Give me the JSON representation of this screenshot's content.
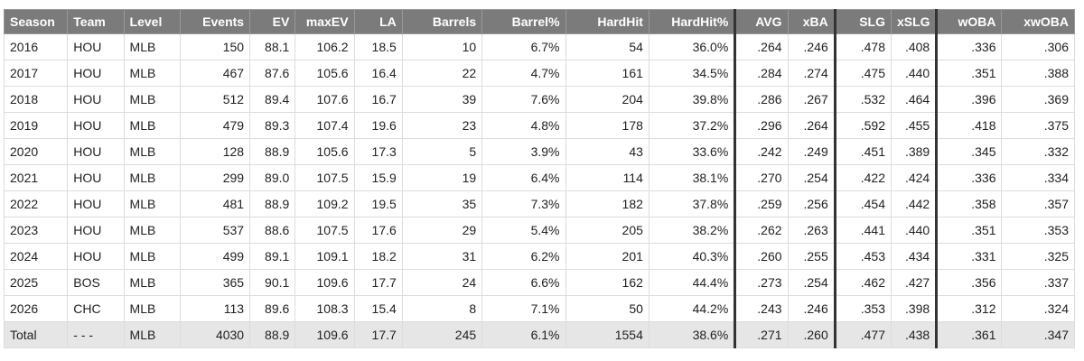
{
  "table": {
    "columns": [
      "Season",
      "Team",
      "Level",
      "Events",
      "EV",
      "maxEV",
      "LA",
      "Barrels",
      "Barrel%",
      "HardHit",
      "HardHit%",
      "AVG",
      "xBA",
      "SLG",
      "xSLG",
      "wOBA",
      "xwOBA"
    ],
    "rows": [
      [
        "2016",
        "HOU",
        "MLB",
        "150",
        "88.1",
        "106.2",
        "18.5",
        "10",
        "6.7%",
        "54",
        "36.0%",
        ".264",
        ".246",
        ".478",
        ".408",
        ".336",
        ".306"
      ],
      [
        "2017",
        "HOU",
        "MLB",
        "467",
        "87.6",
        "105.6",
        "16.4",
        "22",
        "4.7%",
        "161",
        "34.5%",
        ".284",
        ".274",
        ".475",
        ".440",
        ".351",
        ".388"
      ],
      [
        "2018",
        "HOU",
        "MLB",
        "512",
        "89.4",
        "107.6",
        "16.7",
        "39",
        "7.6%",
        "204",
        "39.8%",
        ".286",
        ".267",
        ".532",
        ".464",
        ".396",
        ".369"
      ],
      [
        "2019",
        "HOU",
        "MLB",
        "479",
        "89.3",
        "107.4",
        "19.6",
        "23",
        "4.8%",
        "178",
        "37.2%",
        ".296",
        ".264",
        ".592",
        ".455",
        ".418",
        ".375"
      ],
      [
        "2020",
        "HOU",
        "MLB",
        "128",
        "88.9",
        "105.6",
        "17.3",
        "5",
        "3.9%",
        "43",
        "33.6%",
        ".242",
        ".249",
        ".451",
        ".389",
        ".345",
        ".332"
      ],
      [
        "2021",
        "HOU",
        "MLB",
        "299",
        "89.0",
        "107.5",
        "15.9",
        "19",
        "6.4%",
        "114",
        "38.1%",
        ".270",
        ".254",
        ".422",
        ".424",
        ".336",
        ".334"
      ],
      [
        "2022",
        "HOU",
        "MLB",
        "481",
        "88.9",
        "109.2",
        "19.5",
        "35",
        "7.3%",
        "182",
        "37.8%",
        ".259",
        ".256",
        ".454",
        ".442",
        ".358",
        ".357"
      ],
      [
        "2023",
        "HOU",
        "MLB",
        "537",
        "88.6",
        "107.5",
        "17.6",
        "29",
        "5.4%",
        "205",
        "38.2%",
        ".262",
        ".263",
        ".441",
        ".440",
        ".351",
        ".353"
      ],
      [
        "2024",
        "HOU",
        "MLB",
        "499",
        "89.1",
        "109.1",
        "18.2",
        "31",
        "6.2%",
        "201",
        "40.3%",
        ".260",
        ".255",
        ".453",
        ".434",
        ".331",
        ".325"
      ],
      [
        "2025",
        "BOS",
        "MLB",
        "365",
        "90.1",
        "109.6",
        "17.7",
        "24",
        "6.6%",
        "162",
        "44.4%",
        ".273",
        ".254",
        ".462",
        ".427",
        ".356",
        ".337"
      ],
      [
        "2026",
        "CHC",
        "MLB",
        "113",
        "89.6",
        "108.3",
        "15.4",
        "8",
        "7.1%",
        "50",
        "44.2%",
        ".243",
        ".246",
        ".353",
        ".398",
        ".312",
        ".324"
      ],
      [
        "Total",
        "- - -",
        "MLB",
        "4030",
        "88.9",
        "109.6",
        "17.7",
        "245",
        "6.1%",
        "1554",
        "38.6%",
        ".271",
        ".260",
        ".477",
        ".438",
        ".361",
        ".347"
      ]
    ]
  }
}
